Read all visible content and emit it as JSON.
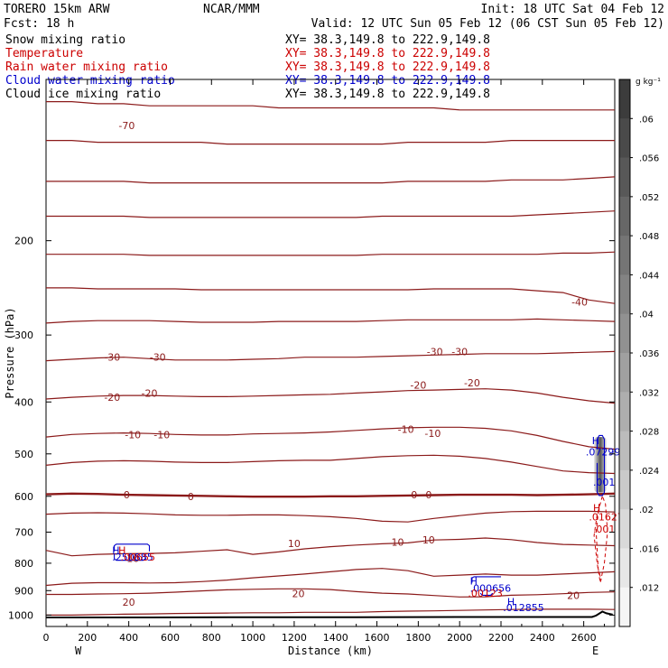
{
  "header": {
    "model": "TORERO  15km ARW",
    "forecast": "Fcst:   18 h",
    "center": "NCAR/MMM",
    "init": "Init: 18 UTC Sat 04 Feb 12",
    "valid": "Valid: 12 UTC Sun 05 Feb 12 (06 CST Sun 05 Feb 12)"
  },
  "legend": [
    {
      "label": "Snow mixing ratio",
      "xy": "XY=  38.3,149.8 to 222.9,149.8",
      "color": "#000000",
      "xy_color": "#000000"
    },
    {
      "label": "Temperature",
      "xy": "XY=  38.3,149.8 to 222.9,149.8",
      "color": "#cc0000",
      "xy_color": "#cc0000"
    },
    {
      "label": "Rain water mixing ratio",
      "xy": "XY=  38.3,149.8 to 222.9,149.8",
      "color": "#cc0000",
      "xy_color": "#cc0000"
    },
    {
      "label": "Cloud water mixing ratio",
      "xy": "XY=  38.3,149.8 to 222.9,149.8",
      "color": "#0000cc",
      "xy_color": "#0000cc"
    },
    {
      "label": "Cloud ice mixing ratio",
      "xy": "XY=  38.3,149.8 to 222.9,149.8",
      "color": "#000000",
      "xy_color": "#000000"
    }
  ],
  "colors": {
    "temperature": "#8b1a1a",
    "rain": "#cc0000",
    "cloud_water": "#0000cc",
    "terrain": "#000000"
  },
  "chart_data": {
    "type": "line",
    "xlabel": "Distance (km)",
    "ylabel": "Pressure (hPa)",
    "xlim": [
      0,
      2750
    ],
    "ylim": [
      1050,
      100
    ],
    "y_scale": "log",
    "x_ticks": [
      0,
      200,
      400,
      600,
      800,
      1000,
      1200,
      1400,
      1600,
      1800,
      2000,
      2200,
      2400,
      2600
    ],
    "y_ticks": [
      200,
      300,
      400,
      500,
      600,
      700,
      800,
      900,
      1000
    ],
    "x_end_labels": {
      "left": "W",
      "right": "E"
    },
    "colorbar": {
      "unit": "g kg⁻¹",
      "tick_labels": [
        ".06",
        ".056",
        ".052",
        ".048",
        ".044",
        ".04",
        ".036",
        ".032",
        ".028",
        ".024",
        ".02",
        ".016",
        ".012"
      ]
    },
    "isotherm_labels": [
      {
        "text": "-70",
        "x": 390,
        "p": 122
      },
      {
        "text": "-40",
        "x": 2580,
        "p": 260
      },
      {
        "text": "-30",
        "x": 320,
        "p": 330
      },
      {
        "text": "-30",
        "x": 540,
        "p": 330
      },
      {
        "text": "-30",
        "x": 1880,
        "p": 322
      },
      {
        "text": "-30",
        "x": 2000,
        "p": 322
      },
      {
        "text": "-20",
        "x": 320,
        "p": 392
      },
      {
        "text": "-20",
        "x": 500,
        "p": 385
      },
      {
        "text": "-20",
        "x": 1800,
        "p": 372
      },
      {
        "text": "-20",
        "x": 2060,
        "p": 368
      },
      {
        "text": "-10",
        "x": 420,
        "p": 460
      },
      {
        "text": "-10",
        "x": 560,
        "p": 460
      },
      {
        "text": "-10",
        "x": 1740,
        "p": 450
      },
      {
        "text": "-10",
        "x": 1870,
        "p": 458
      },
      {
        "text": "0",
        "x": 390,
        "p": 596
      },
      {
        "text": "0",
        "x": 700,
        "p": 600
      },
      {
        "text": "0",
        "x": 1780,
        "p": 596
      },
      {
        "text": "0",
        "x": 1850,
        "p": 596
      },
      {
        "text": "10",
        "x": 1200,
        "p": 735
      },
      {
        "text": "10",
        "x": 1700,
        "p": 730
      },
      {
        "text": "10",
        "x": 1850,
        "p": 723
      },
      {
        "text": "10",
        "x": 420,
        "p": 784
      },
      {
        "text": "20",
        "x": 400,
        "p": 945
      },
      {
        "text": "20",
        "x": 1220,
        "p": 912
      },
      {
        "text": "20",
        "x": 2550,
        "p": 918
      }
    ],
    "max_labels": [
      {
        "text": "H",
        "x": 320,
        "p": 757,
        "color": "#0000cc"
      },
      {
        "text": "H",
        "x": 350,
        "p": 757,
        "color": "#cc0000"
      },
      {
        "text": ".250885",
        "x": 320,
        "p": 779,
        "color": "#0000cc"
      },
      {
        "text": ".00655",
        "x": 360,
        "p": 779,
        "color": "#cc0000"
      },
      {
        "text": "H",
        "x": 2050,
        "p": 863,
        "color": "#0000cc"
      },
      {
        "text": ".000656",
        "x": 2050,
        "p": 890,
        "color": "#0000cc"
      },
      {
        "text": ".00123",
        "x": 2040,
        "p": 910,
        "color": "#cc0000"
      },
      {
        "text": "H",
        "x": 2230,
        "p": 943,
        "color": "#0000cc"
      },
      {
        "text": ".012855",
        "x": 2210,
        "p": 967,
        "color": "#0000cc"
      },
      {
        "text": "H",
        "x": 2640,
        "p": 472,
        "color": "#0000cc"
      },
      {
        "text": ".072993",
        "x": 2610,
        "p": 496,
        "color": "#0000cc"
      },
      {
        "text": ".001",
        "x": 2645,
        "p": 564,
        "color": "#0000cc"
      },
      {
        "text": "H",
        "x": 2645,
        "p": 630,
        "color": "#cc0000"
      },
      {
        "text": ".01627",
        "x": 2625,
        "p": 655,
        "color": "#cc0000"
      },
      {
        "text": ".001",
        "x": 2645,
        "p": 690,
        "color": "#cc0000"
      }
    ]
  }
}
